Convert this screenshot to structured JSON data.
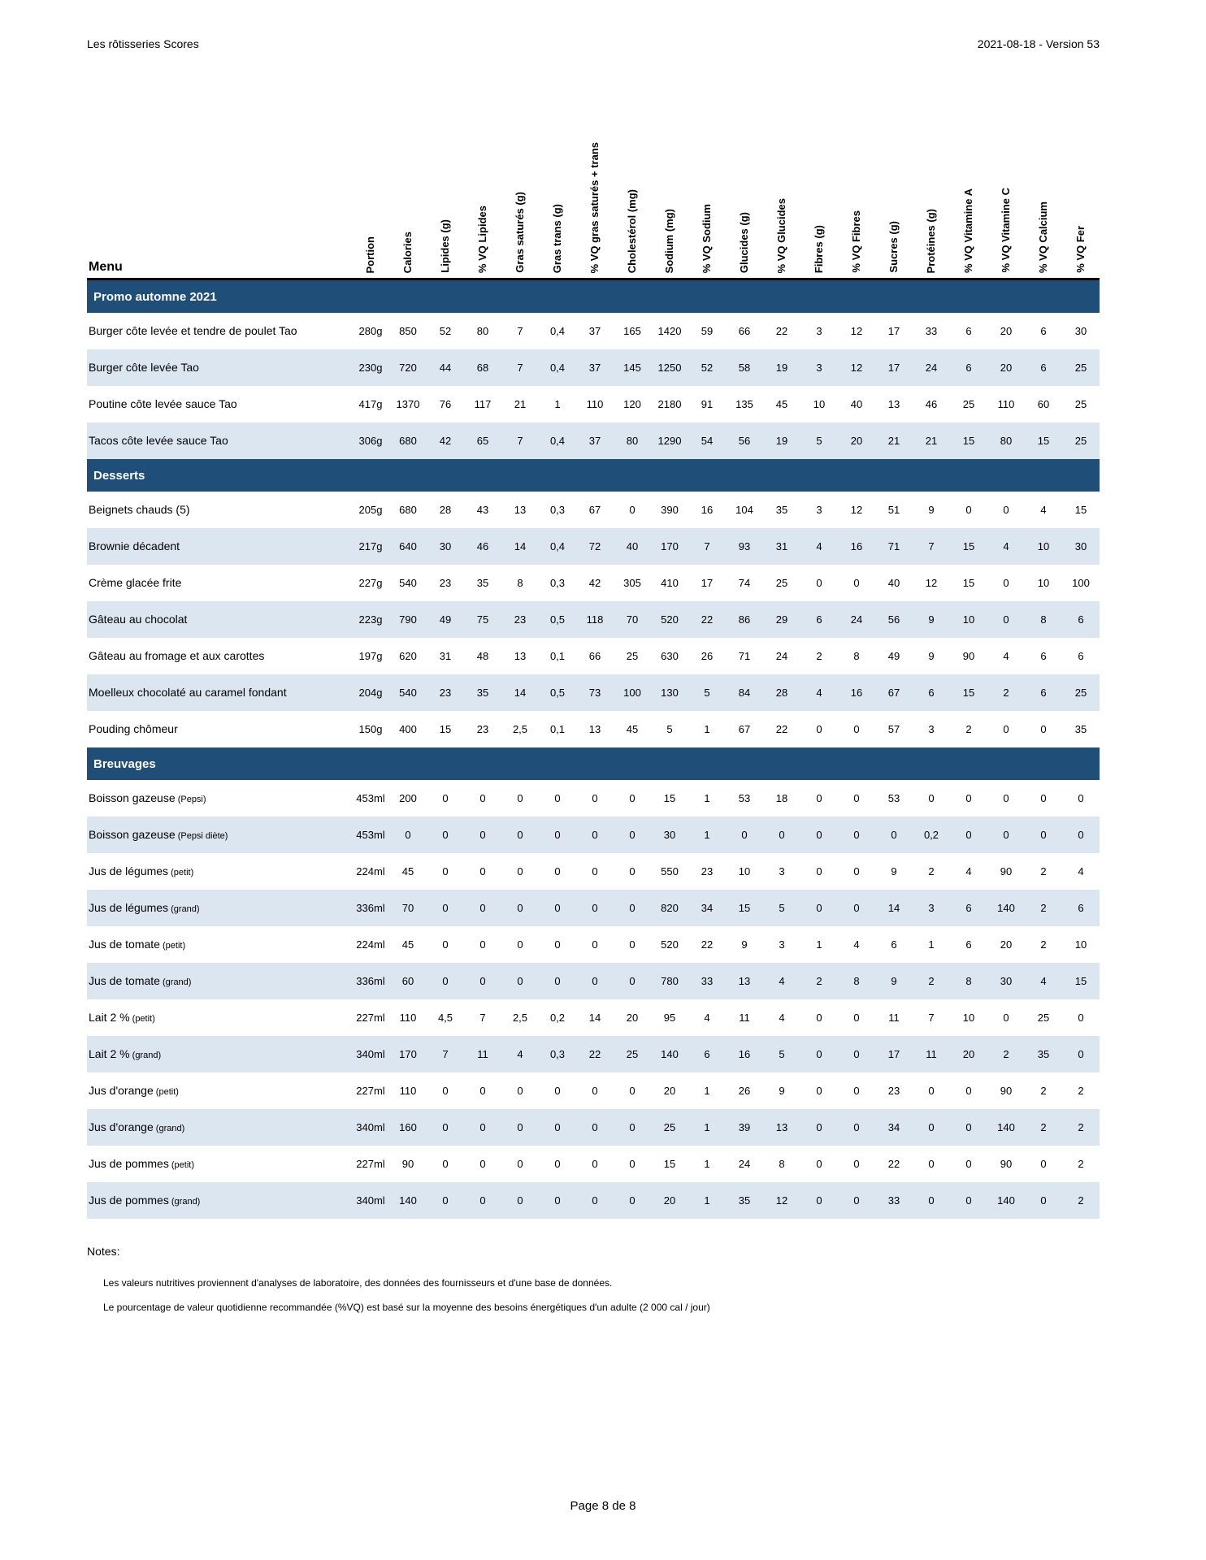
{
  "page": {
    "title": "Les rôtisseries Scores",
    "version": "2021-08-18 - Version 53",
    "footer": "Page 8 de 8"
  },
  "colors": {
    "section_band_bg": "#1F4E79",
    "section_band_text": "#ffffff",
    "row_stripe": "#DCE6F1",
    "header_rule": "#000000"
  },
  "table": {
    "menu_header": "Menu",
    "columns": [
      "Portion",
      "Calories",
      "Lipides (g)",
      "% VQ Lipides",
      "Gras saturés (g)",
      "Gras trans (g)",
      "% VQ gras saturés + trans",
      "Cholestérol (mg)",
      "Sodium (mg)",
      "% VQ Sodium",
      "Glucides (g)",
      "% VQ Glucides",
      "Fibres (g)",
      "% VQ Fibres",
      "Sucres (g)",
      "Protéines (g)",
      "% VQ Vitamine A",
      "% VQ Vitamine C",
      "% VQ Calcium",
      "% VQ Fer"
    ],
    "sections": [
      {
        "title": "Promo automne 2021",
        "rows": [
          {
            "name": "Burger côte levée et tendre de poulet Tao",
            "qualifier": "",
            "values": [
              "280g",
              "850",
              "52",
              "80",
              "7",
              "0,4",
              "37",
              "165",
              "1420",
              "59",
              "66",
              "22",
              "3",
              "12",
              "17",
              "33",
              "6",
              "20",
              "6",
              "30"
            ]
          },
          {
            "name": "Burger côte levée Tao",
            "qualifier": "",
            "values": [
              "230g",
              "720",
              "44",
              "68",
              "7",
              "0,4",
              "37",
              "145",
              "1250",
              "52",
              "58",
              "19",
              "3",
              "12",
              "17",
              "24",
              "6",
              "20",
              "6",
              "25"
            ]
          },
          {
            "name": "Poutine côte levée sauce Tao",
            "qualifier": "",
            "values": [
              "417g",
              "1370",
              "76",
              "117",
              "21",
              "1",
              "110",
              "120",
              "2180",
              "91",
              "135",
              "45",
              "10",
              "40",
              "13",
              "46",
              "25",
              "110",
              "60",
              "25"
            ]
          },
          {
            "name": "Tacos côte levée sauce Tao",
            "qualifier": "",
            "values": [
              "306g",
              "680",
              "42",
              "65",
              "7",
              "0,4",
              "37",
              "80",
              "1290",
              "54",
              "56",
              "19",
              "5",
              "20",
              "21",
              "21",
              "15",
              "80",
              "15",
              "25"
            ]
          }
        ]
      },
      {
        "title": "Desserts",
        "rows": [
          {
            "name": "Beignets chauds (5)",
            "qualifier": "",
            "values": [
              "205g",
              "680",
              "28",
              "43",
              "13",
              "0,3",
              "67",
              "0",
              "390",
              "16",
              "104",
              "35",
              "3",
              "12",
              "51",
              "9",
              "0",
              "0",
              "4",
              "15"
            ]
          },
          {
            "name": "Brownie décadent",
            "qualifier": "",
            "values": [
              "217g",
              "640",
              "30",
              "46",
              "14",
              "0,4",
              "72",
              "40",
              "170",
              "7",
              "93",
              "31",
              "4",
              "16",
              "71",
              "7",
              "15",
              "4",
              "10",
              "30"
            ]
          },
          {
            "name": "Crème glacée frite",
            "qualifier": "",
            "values": [
              "227g",
              "540",
              "23",
              "35",
              "8",
              "0,3",
              "42",
              "305",
              "410",
              "17",
              "74",
              "25",
              "0",
              "0",
              "40",
              "12",
              "15",
              "0",
              "10",
              "100"
            ]
          },
          {
            "name": "Gâteau au chocolat",
            "qualifier": "",
            "values": [
              "223g",
              "790",
              "49",
              "75",
              "23",
              "0,5",
              "118",
              "70",
              "520",
              "22",
              "86",
              "29",
              "6",
              "24",
              "56",
              "9",
              "10",
              "0",
              "8",
              "6"
            ]
          },
          {
            "name": "Gâteau au fromage et aux carottes",
            "qualifier": "",
            "values": [
              "197g",
              "620",
              "31",
              "48",
              "13",
              "0,1",
              "66",
              "25",
              "630",
              "26",
              "71",
              "24",
              "2",
              "8",
              "49",
              "9",
              "90",
              "4",
              "6",
              "6"
            ]
          },
          {
            "name": "Moelleux chocolaté au caramel fondant",
            "qualifier": "",
            "values": [
              "204g",
              "540",
              "23",
              "35",
              "14",
              "0,5",
              "73",
              "100",
              "130",
              "5",
              "84",
              "28",
              "4",
              "16",
              "67",
              "6",
              "15",
              "2",
              "6",
              "25"
            ]
          },
          {
            "name": "Pouding chômeur",
            "qualifier": "",
            "values": [
              "150g",
              "400",
              "15",
              "23",
              "2,5",
              "0,1",
              "13",
              "45",
              "5",
              "1",
              "67",
              "22",
              "0",
              "0",
              "57",
              "3",
              "2",
              "0",
              "0",
              "35"
            ]
          }
        ]
      },
      {
        "title": "Breuvages",
        "rows": [
          {
            "name": "Boisson gazeuse",
            "qualifier": "(Pepsi)",
            "values": [
              "453ml",
              "200",
              "0",
              "0",
              "0",
              "0",
              "0",
              "0",
              "15",
              "1",
              "53",
              "18",
              "0",
              "0",
              "53",
              "0",
              "0",
              "0",
              "0",
              "0"
            ]
          },
          {
            "name": "Boisson gazeuse",
            "qualifier": "(Pepsi diète)",
            "values": [
              "453ml",
              "0",
              "0",
              "0",
              "0",
              "0",
              "0",
              "0",
              "30",
              "1",
              "0",
              "0",
              "0",
              "0",
              "0",
              "0,2",
              "0",
              "0",
              "0",
              "0"
            ]
          },
          {
            "name": "Jus de légumes",
            "qualifier": "(petit)",
            "values": [
              "224ml",
              "45",
              "0",
              "0",
              "0",
              "0",
              "0",
              "0",
              "550",
              "23",
              "10",
              "3",
              "0",
              "0",
              "9",
              "2",
              "4",
              "90",
              "2",
              "4"
            ]
          },
          {
            "name": "Jus de légumes",
            "qualifier": "(grand)",
            "values": [
              "336ml",
              "70",
              "0",
              "0",
              "0",
              "0",
              "0",
              "0",
              "820",
              "34",
              "15",
              "5",
              "0",
              "0",
              "14",
              "3",
              "6",
              "140",
              "2",
              "6"
            ]
          },
          {
            "name": "Jus de tomate",
            "qualifier": "(petit)",
            "values": [
              "224ml",
              "45",
              "0",
              "0",
              "0",
              "0",
              "0",
              "0",
              "520",
              "22",
              "9",
              "3",
              "1",
              "4",
              "6",
              "1",
              "6",
              "20",
              "2",
              "10"
            ]
          },
          {
            "name": "Jus de tomate",
            "qualifier": "(grand)",
            "values": [
              "336ml",
              "60",
              "0",
              "0",
              "0",
              "0",
              "0",
              "0",
              "780",
              "33",
              "13",
              "4",
              "2",
              "8",
              "9",
              "2",
              "8",
              "30",
              "4",
              "15"
            ]
          },
          {
            "name": "Lait 2 %",
            "qualifier": "(petit)",
            "values": [
              "227ml",
              "110",
              "4,5",
              "7",
              "2,5",
              "0,2",
              "14",
              "20",
              "95",
              "4",
              "11",
              "4",
              "0",
              "0",
              "11",
              "7",
              "10",
              "0",
              "25",
              "0"
            ]
          },
          {
            "name": "Lait 2 %",
            "qualifier": "(grand)",
            "values": [
              "340ml",
              "170",
              "7",
              "11",
              "4",
              "0,3",
              "22",
              "25",
              "140",
              "6",
              "16",
              "5",
              "0",
              "0",
              "17",
              "11",
              "20",
              "2",
              "35",
              "0"
            ]
          },
          {
            "name": "Jus d'orange",
            "qualifier": "(petit)",
            "values": [
              "227ml",
              "110",
              "0",
              "0",
              "0",
              "0",
              "0",
              "0",
              "20",
              "1",
              "26",
              "9",
              "0",
              "0",
              "23",
              "0",
              "0",
              "90",
              "2",
              "2"
            ]
          },
          {
            "name": "Jus d'orange",
            "qualifier": "(grand)",
            "values": [
              "340ml",
              "160",
              "0",
              "0",
              "0",
              "0",
              "0",
              "0",
              "25",
              "1",
              "39",
              "13",
              "0",
              "0",
              "34",
              "0",
              "0",
              "140",
              "2",
              "2"
            ]
          },
          {
            "name": "Jus de pommes",
            "qualifier": "(petit)",
            "values": [
              "227ml",
              "90",
              "0",
              "0",
              "0",
              "0",
              "0",
              "0",
              "15",
              "1",
              "24",
              "8",
              "0",
              "0",
              "22",
              "0",
              "0",
              "90",
              "0",
              "2"
            ]
          },
          {
            "name": "Jus de pommes",
            "qualifier": "(grand)",
            "values": [
              "340ml",
              "140",
              "0",
              "0",
              "0",
              "0",
              "0",
              "0",
              "20",
              "1",
              "35",
              "12",
              "0",
              "0",
              "33",
              "0",
              "0",
              "140",
              "0",
              "2"
            ]
          }
        ]
      }
    ]
  },
  "notes": {
    "title": "Notes:",
    "items": [
      "Les valeurs nutritives proviennent d'analyses de laboratoire, des données des fournisseurs et d'une base de données.",
      "Le pourcentage de valeur quotidienne recommandée (%VQ) est basé sur la moyenne des besoins énergétiques d'un adulte (2 000 cal / jour)"
    ]
  }
}
